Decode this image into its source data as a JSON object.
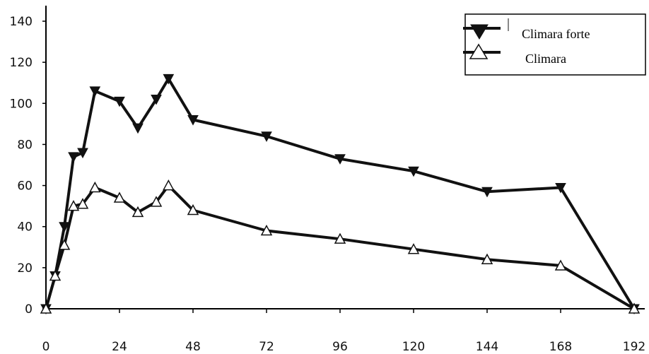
{
  "chart_data": {
    "type": "line",
    "title": "",
    "xlabel": "",
    "ylabel": "",
    "xlim": [
      0,
      192
    ],
    "ylim": [
      0,
      140
    ],
    "x_ticks": [
      "0",
      "24",
      "48",
      "72",
      "96",
      "120",
      "144",
      "168",
      "192"
    ],
    "y_ticks": [
      "0",
      "20",
      "40",
      "60",
      "80",
      "100",
      "120",
      "140"
    ],
    "grid": false,
    "legend_position": "top-right",
    "series": [
      {
        "name": "Climara forte",
        "marker": "filled-down-triangle",
        "color": "#111111",
        "points": [
          [
            0,
            0
          ],
          [
            3,
            16
          ],
          [
            6,
            40
          ],
          [
            9,
            74
          ],
          [
            12,
            76
          ],
          [
            16,
            106
          ],
          [
            24,
            101
          ],
          [
            30,
            88
          ],
          [
            36,
            102
          ],
          [
            40,
            112
          ],
          [
            48,
            92
          ],
          [
            72,
            84
          ],
          [
            96,
            73
          ],
          [
            120,
            67
          ],
          [
            144,
            57
          ],
          [
            168,
            59
          ],
          [
            192,
            0
          ]
        ]
      },
      {
        "name": "Climara",
        "marker": "open-up-triangle",
        "color": "#111111",
        "points": [
          [
            0,
            0
          ],
          [
            3,
            16
          ],
          [
            6,
            31
          ],
          [
            9,
            50
          ],
          [
            12,
            51
          ],
          [
            16,
            59
          ],
          [
            24,
            54
          ],
          [
            30,
            47
          ],
          [
            36,
            52
          ],
          [
            40,
            60
          ],
          [
            48,
            48
          ],
          [
            72,
            38
          ],
          [
            96,
            34
          ],
          [
            120,
            29
          ],
          [
            144,
            24
          ],
          [
            168,
            21
          ],
          [
            192,
            0
          ]
        ]
      }
    ]
  }
}
